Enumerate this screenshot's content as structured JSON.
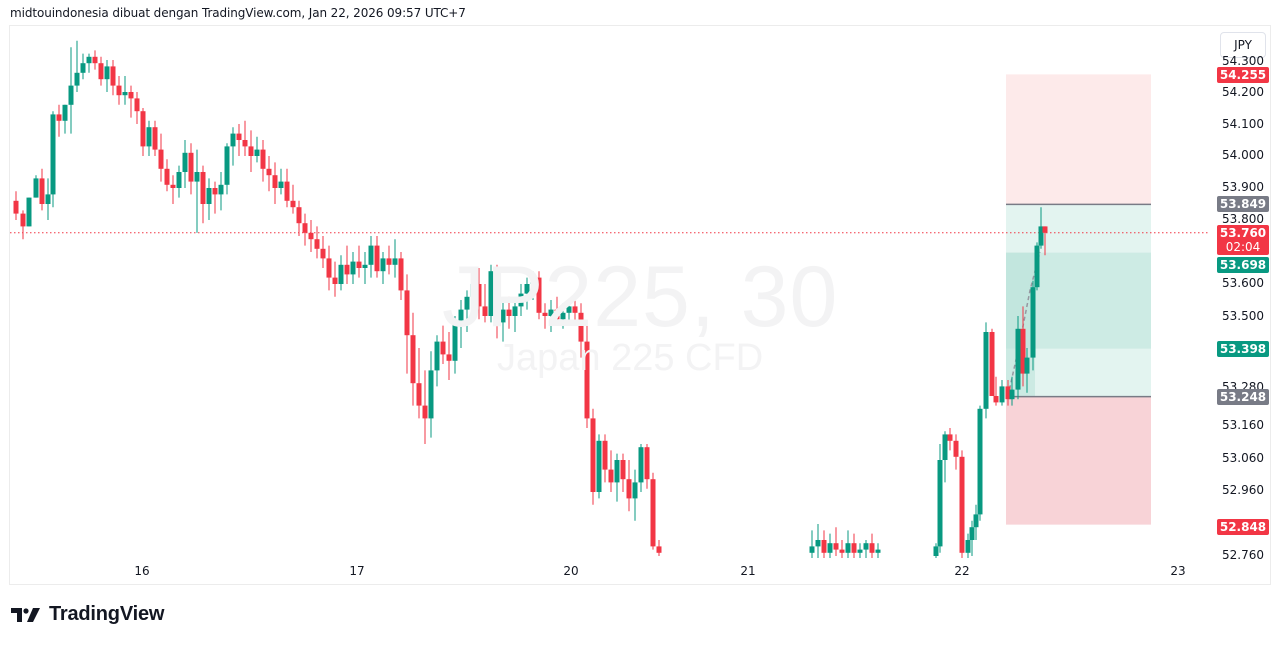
{
  "caption": "midtouindonesia dibuat dengan TradingView.com, Jan 22, 2026 09:57 UTC+7",
  "symbol_watermark": "JP225, 30",
  "symbol_description": "Japan 225 CFD",
  "currency_button": "JPY",
  "brand": "TradingView",
  "colors": {
    "up": "#089981",
    "down": "#f23645",
    "current_price": "#f23645",
    "entry_tag": "#787b86",
    "target_tag": "#089981",
    "stop_zone": "#f8d3d7",
    "stop_zone_light": "#fdeaea",
    "profit_zone": "#cdebe4",
    "profit_zone_light": "#e3f4f0"
  },
  "price_axis": {
    "ticks": [
      "54.300",
      "54.200",
      "54.100",
      "54.000",
      "53.900",
      "53.800",
      "53.600",
      "53.500",
      "53.280",
      "53.160",
      "53.060",
      "52.960",
      "52.760"
    ],
    "tags": {
      "upper_stop": "54.255",
      "entry_top": "53.849",
      "current_price": "53.760",
      "countdown": "02:04",
      "target_1": "53.698",
      "target_2": "53.398",
      "entry_bottom": "53.248",
      "lower_stop": "52.848"
    }
  },
  "time_axis": {
    "labels": [
      "16",
      "17",
      "20",
      "21",
      "22",
      "23"
    ]
  },
  "chart_data": {
    "type": "candlestick",
    "title": "JP225, 30",
    "subtitle": "Japan 225 CFD",
    "xlabel": "",
    "ylabel": "JPY",
    "timeframe": "30m",
    "x_ticks": [
      "16",
      "17",
      "20",
      "21",
      "22",
      "23"
    ],
    "y_ticks": [
      54.2,
      54.1,
      54.0,
      53.9,
      53.8,
      53.6,
      53.5,
      53.28,
      53.16,
      53.06,
      52.96,
      52.76
    ],
    "ylim": [
      52.74,
      54.32
    ],
    "current_price": 53.76,
    "annotations": {
      "long_position_box": {
        "stop_upper": 54.255,
        "entry_top": 53.849,
        "target_1": 53.698,
        "target_2": 53.398,
        "entry_bottom": 53.248,
        "stop_lower": 52.848
      }
    },
    "candles": [
      [
        16,
        53.86,
        53.89,
        53.8,
        53.82
      ],
      [
        23,
        53.82,
        53.83,
        53.74,
        53.78
      ],
      [
        29,
        53.78,
        53.87,
        53.78,
        53.87
      ],
      [
        36,
        53.87,
        53.94,
        53.87,
        53.93
      ],
      [
        42,
        53.93,
        53.96,
        53.83,
        53.85
      ],
      [
        48,
        53.85,
        53.93,
        53.8,
        53.88
      ],
      [
        53,
        53.88,
        54.14,
        53.84,
        54.13
      ],
      [
        59,
        54.13,
        54.16,
        54.06,
        54.11
      ],
      [
        65,
        54.11,
        54.16,
        54.07,
        54.16
      ],
      [
        71,
        54.16,
        54.34,
        54.07,
        54.22
      ],
      [
        77,
        54.22,
        54.36,
        54.2,
        54.26
      ],
      [
        83,
        54.26,
        54.32,
        54.24,
        54.29
      ],
      [
        89,
        54.29,
        54.32,
        54.26,
        54.31
      ],
      [
        95,
        54.31,
        54.33,
        54.27,
        54.29
      ],
      [
        101,
        54.29,
        54.31,
        54.22,
        54.24
      ],
      [
        107,
        54.24,
        54.3,
        54.2,
        54.28
      ],
      [
        113,
        54.28,
        54.3,
        54.19,
        54.22
      ],
      [
        119,
        54.22,
        54.25,
        54.16,
        54.19
      ],
      [
        125,
        54.19,
        54.25,
        54.16,
        54.2
      ],
      [
        131,
        54.2,
        54.22,
        54.12,
        54.18
      ],
      [
        137,
        54.18,
        54.2,
        54.1,
        54.14
      ],
      [
        143,
        54.14,
        54.15,
        54.0,
        54.03
      ],
      [
        149,
        54.03,
        54.11,
        54.0,
        54.09
      ],
      [
        155,
        54.09,
        54.11,
        54.0,
        54.02
      ],
      [
        161,
        54.02,
        54.07,
        53.92,
        53.96
      ],
      [
        167,
        53.96,
        53.99,
        53.89,
        53.91
      ],
      [
        173,
        53.91,
        53.94,
        53.85,
        53.9
      ],
      [
        179,
        53.9,
        53.97,
        53.87,
        53.95
      ],
      [
        185,
        53.95,
        54.05,
        53.9,
        54.01
      ],
      [
        191,
        54.01,
        54.04,
        53.88,
        53.92
      ],
      [
        197,
        53.92,
        54.02,
        53.76,
        53.95
      ],
      [
        203,
        53.95,
        53.97,
        53.79,
        53.85
      ],
      [
        209,
        53.85,
        53.93,
        53.8,
        53.9
      ],
      [
        215,
        53.9,
        53.92,
        53.82,
        53.88
      ],
      [
        221,
        53.88,
        53.95,
        53.83,
        53.91
      ],
      [
        227,
        53.91,
        54.04,
        53.88,
        54.03
      ],
      [
        233,
        54.03,
        54.09,
        53.97,
        54.07
      ],
      [
        239,
        54.07,
        54.1,
        54.0,
        54.05
      ],
      [
        245,
        54.05,
        54.11,
        54.0,
        54.03
      ],
      [
        251,
        54.03,
        54.08,
        53.95,
        54.0
      ],
      [
        257,
        54.0,
        54.06,
        53.98,
        54.02
      ],
      [
        263,
        54.02,
        54.05,
        53.92,
        53.96
      ],
      [
        269,
        53.96,
        54.0,
        53.89,
        53.94
      ],
      [
        275,
        53.94,
        53.98,
        53.85,
        53.9
      ],
      [
        281,
        53.9,
        53.96,
        53.88,
        53.92
      ],
      [
        287,
        53.92,
        53.96,
        53.84,
        53.86
      ],
      [
        293,
        53.86,
        53.91,
        53.82,
        53.84
      ],
      [
        299,
        53.84,
        53.86,
        53.75,
        53.79
      ],
      [
        305,
        53.79,
        53.82,
        53.72,
        53.76
      ],
      [
        311,
        53.76,
        53.8,
        53.7,
        53.74
      ],
      [
        317,
        53.74,
        53.78,
        53.68,
        53.71
      ],
      [
        323,
        53.71,
        53.75,
        53.65,
        53.68
      ],
      [
        329,
        53.68,
        53.72,
        53.58,
        53.62
      ],
      [
        335,
        53.62,
        53.67,
        53.56,
        53.6
      ],
      [
        341,
        53.6,
        53.69,
        53.58,
        53.66
      ],
      [
        347,
        53.66,
        53.72,
        53.6,
        53.63
      ],
      [
        353,
        53.63,
        53.7,
        53.6,
        53.67
      ],
      [
        359,
        53.67,
        53.72,
        53.62,
        53.65
      ],
      [
        365,
        53.65,
        53.7,
        53.6,
        53.66
      ],
      [
        371,
        53.66,
        53.75,
        53.62,
        53.72
      ],
      [
        377,
        53.72,
        53.75,
        53.62,
        53.64
      ],
      [
        383,
        53.64,
        53.7,
        53.6,
        53.68
      ],
      [
        389,
        53.68,
        53.72,
        53.63,
        53.66
      ],
      [
        395,
        53.66,
        53.74,
        53.62,
        53.68
      ],
      [
        401,
        53.68,
        53.7,
        53.55,
        53.58
      ],
      [
        407,
        53.58,
        53.63,
        53.32,
        53.44
      ],
      [
        413,
        53.44,
        53.51,
        53.22,
        53.29
      ],
      [
        419,
        53.29,
        53.4,
        53.18,
        53.22
      ],
      [
        425,
        53.22,
        53.33,
        53.1,
        53.18
      ],
      [
        431,
        53.18,
        53.39,
        53.12,
        53.33
      ],
      [
        437,
        53.33,
        53.44,
        53.28,
        53.42
      ],
      [
        443,
        53.42,
        53.47,
        53.35,
        53.38
      ],
      [
        449,
        53.38,
        53.45,
        53.3,
        53.36
      ],
      [
        455,
        53.36,
        53.5,
        53.32,
        53.48
      ],
      [
        461,
        53.48,
        53.55,
        53.4,
        53.52
      ],
      [
        467,
        53.52,
        53.58,
        53.45,
        53.56
      ],
      [
        473,
        53.56,
        53.63,
        53.5,
        53.6
      ],
      [
        479,
        53.6,
        53.65,
        53.49,
        53.53
      ],
      [
        485,
        53.53,
        53.6,
        53.48,
        53.5
      ],
      [
        491,
        53.5,
        53.66,
        53.48,
        53.64
      ],
      [
        497,
        53.64,
        53.66,
        53.43,
        53.48
      ],
      [
        503,
        53.48,
        53.55,
        53.42,
        53.52
      ],
      [
        509,
        53.52,
        53.56,
        53.46,
        53.5
      ],
      [
        515,
        53.5,
        53.55,
        53.45,
        53.53
      ],
      [
        521,
        53.53,
        53.6,
        53.5,
        53.57
      ],
      [
        527,
        53.57,
        53.62,
        53.52,
        53.6
      ],
      [
        533,
        53.6,
        53.64,
        53.55,
        53.62
      ],
      [
        539,
        53.62,
        53.64,
        53.49,
        53.51
      ],
      [
        545,
        53.51,
        53.54,
        53.46,
        53.5
      ],
      [
        551,
        53.5,
        53.55,
        53.45,
        53.52
      ],
      [
        557,
        53.52,
        53.56,
        53.47,
        53.49
      ],
      [
        563,
        53.49,
        53.54,
        53.46,
        53.51
      ],
      [
        569,
        53.51,
        53.55,
        53.48,
        53.53
      ],
      [
        575,
        53.53,
        53.56,
        53.47,
        53.51
      ],
      [
        581,
        53.51,
        53.54,
        53.37,
        53.42
      ],
      [
        587,
        53.42,
        53.48,
        53.15,
        53.18
      ],
      [
        593,
        53.18,
        53.21,
        52.91,
        52.95
      ],
      [
        599,
        52.95,
        53.13,
        52.93,
        53.11
      ],
      [
        605,
        53.11,
        53.13,
        52.98,
        53.02
      ],
      [
        611,
        53.02,
        53.08,
        52.95,
        52.98
      ],
      [
        617,
        52.98,
        53.07,
        52.92,
        53.05
      ],
      [
        623,
        53.05,
        53.07,
        52.95,
        52.99
      ],
      [
        629,
        52.99,
        53.05,
        52.89,
        52.93
      ],
      [
        635,
        52.93,
        53.02,
        52.86,
        52.98
      ],
      [
        641,
        52.98,
        53.1,
        52.95,
        53.09
      ],
      [
        647,
        53.09,
        53.1,
        52.96,
        52.99
      ],
      [
        653,
        52.99,
        53.01,
        52.77,
        52.78
      ],
      [
        659,
        52.78,
        52.8,
        52.75,
        52.76
      ],
      [
        812,
        52.76,
        52.83,
        52.74,
        52.78
      ],
      [
        818,
        52.78,
        52.85,
        52.74,
        52.8
      ],
      [
        824,
        52.8,
        52.83,
        52.74,
        52.76
      ],
      [
        830,
        52.76,
        52.82,
        52.74,
        52.79
      ],
      [
        836,
        52.79,
        52.84,
        52.75,
        52.77
      ],
      [
        842,
        52.77,
        52.8,
        52.74,
        52.76
      ],
      [
        848,
        52.76,
        52.83,
        52.74,
        52.79
      ],
      [
        854,
        52.79,
        52.82,
        52.74,
        52.76
      ],
      [
        860,
        52.76,
        52.79,
        52.74,
        52.77
      ],
      [
        866,
        52.77,
        52.8,
        52.74,
        52.79
      ],
      [
        872,
        52.79,
        52.82,
        52.74,
        52.76
      ],
      [
        878,
        52.76,
        52.79,
        52.74,
        52.77
      ],
      [
        936,
        52.75,
        52.79,
        52.74,
        52.78
      ],
      [
        940,
        52.78,
        53.1,
        52.76,
        53.05
      ],
      [
        945,
        53.05,
        53.14,
        52.98,
        53.13
      ],
      [
        950,
        53.13,
        53.15,
        53.08,
        53.11
      ],
      [
        956,
        53.11,
        53.13,
        53.02,
        53.06
      ],
      [
        962,
        53.06,
        53.08,
        52.74,
        52.76
      ],
      [
        968,
        52.76,
        52.82,
        52.74,
        52.8
      ],
      [
        972,
        52.8,
        52.86,
        52.75,
        52.84
      ],
      [
        976,
        52.84,
        52.91,
        52.8,
        52.88
      ],
      [
        980,
        52.88,
        53.22,
        52.86,
        53.21
      ],
      [
        986,
        53.21,
        53.48,
        53.18,
        53.45
      ],
      [
        992,
        53.45,
        53.46,
        53.28,
        53.25
      ],
      [
        996,
        53.25,
        53.31,
        53.22,
        53.23
      ],
      [
        1002,
        53.23,
        53.3,
        53.22,
        53.28
      ],
      [
        1008,
        53.28,
        53.3,
        53.22,
        53.24
      ],
      [
        1012,
        53.24,
        53.31,
        53.22,
        53.27
      ],
      [
        1018,
        53.27,
        53.5,
        53.24,
        53.46
      ],
      [
        1023,
        53.46,
        53.53,
        53.28,
        53.32
      ],
      [
        1027,
        53.32,
        53.4,
        53.26,
        53.37
      ],
      [
        1033,
        53.37,
        53.61,
        53.33,
        53.59
      ],
      [
        1037,
        53.59,
        53.73,
        53.58,
        53.72
      ],
      [
        1041,
        53.72,
        53.84,
        53.71,
        53.78
      ],
      [
        1045,
        53.78,
        53.78,
        53.69,
        53.76
      ]
    ]
  }
}
